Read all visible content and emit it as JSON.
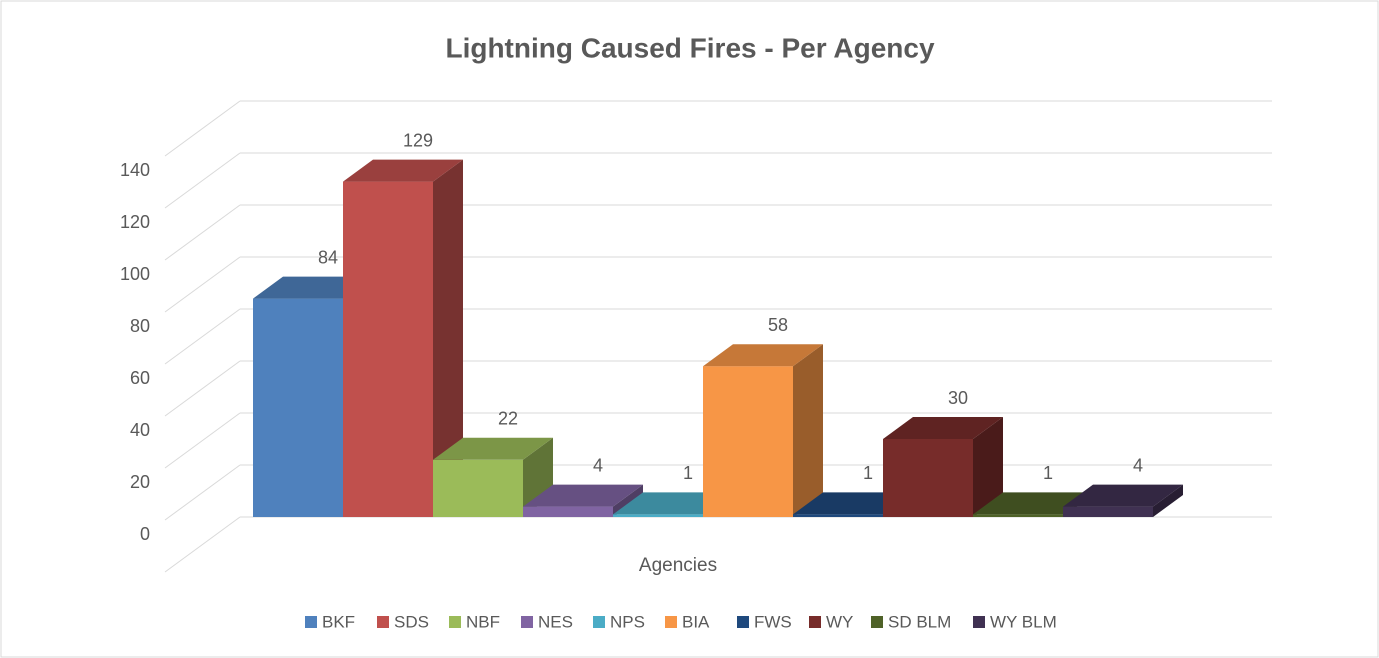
{
  "chart_data": {
    "type": "bar3d",
    "title": "Lightning Caused Fires - Per Agency",
    "x_label": "Agencies",
    "series": [
      {
        "name": "BKF",
        "color": "#4f81bd",
        "values": [
          84
        ]
      },
      {
        "name": "SDS",
        "color": "#c0504d",
        "values": [
          129
        ]
      },
      {
        "name": "NBF",
        "color": "#9bbb59",
        "values": [
          22
        ]
      },
      {
        "name": "NES",
        "color": "#8064a2",
        "values": [
          4
        ]
      },
      {
        "name": "NPS",
        "color": "#4bacc6",
        "values": [
          1
        ]
      },
      {
        "name": "BIA",
        "color": "#f79646",
        "values": [
          58
        ]
      },
      {
        "name": "FWS",
        "color": "#1f497d",
        "values": [
          1
        ]
      },
      {
        "name": "WY",
        "color": "#772c2a",
        "values": [
          30
        ]
      },
      {
        "name": "SD BLM",
        "color": "#4f6228",
        "values": [
          1
        ]
      },
      {
        "name": "WY BLM",
        "color": "#403152",
        "values": [
          4
        ]
      }
    ],
    "ylim": [
      0,
      160
    ],
    "yticks": [
      0,
      20,
      40,
      60,
      80,
      100,
      120,
      140
    ],
    "grid": true,
    "legend": "bottom"
  }
}
